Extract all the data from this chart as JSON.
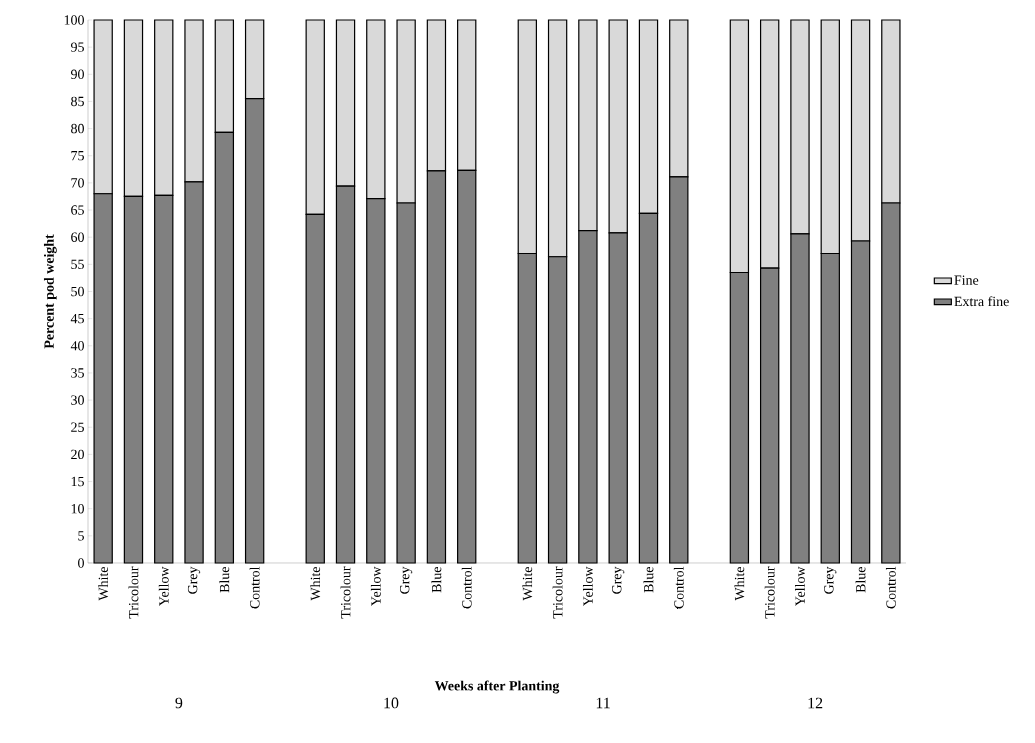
{
  "chart_data": {
    "type": "bar",
    "stacked": true,
    "xlabel": "Weeks after Planting",
    "ylabel": "Percent pod  weight",
    "categories": [
      "White",
      "Tricolour",
      "Yellow",
      "Grey",
      "Blue",
      "Control",
      null,
      "White",
      "Tricolour",
      "Yellow",
      "Grey",
      "Blue",
      "Control",
      null,
      "White",
      "Tricolour",
      "Yellow",
      "Grey",
      "Blue",
      "Control",
      null,
      "White",
      "Tricolour",
      "Yellow",
      "Grey",
      "Blue",
      "Control"
    ],
    "series": [
      {
        "name": "Extra fine",
        "color": "#808080",
        "values": [
          68,
          67.5,
          67.7,
          70.2,
          79.3,
          85.5,
          null,
          64.2,
          69.4,
          67.1,
          66.3,
          72.2,
          72.3,
          null,
          57,
          56.4,
          61.2,
          60.8,
          64.4,
          71.1,
          null,
          53.5,
          54.3,
          60.6,
          57,
          59.3,
          66.3
        ]
      },
      {
        "name": "Fine",
        "color": "#d9d9d9",
        "values": [
          32,
          32.5,
          32.3,
          29.8,
          20.7,
          14.5,
          null,
          35.8,
          30.6,
          32.9,
          33.7,
          27.8,
          27.7,
          null,
          43,
          43.6,
          38.8,
          39.2,
          35.6,
          28.9,
          null,
          46.5,
          45.7,
          39.4,
          43,
          40.7,
          33.7
        ]
      }
    ],
    "annotations": [
      "9",
      "10",
      "11",
      "12"
    ],
    "ylim": [
      0,
      100
    ],
    "yticks": [
      0,
      5,
      10,
      15,
      20,
      25,
      30,
      35,
      40,
      45,
      50,
      55,
      60,
      65,
      70,
      75,
      80,
      85,
      90,
      95,
      100
    ],
    "grid": false,
    "legend": "right"
  }
}
